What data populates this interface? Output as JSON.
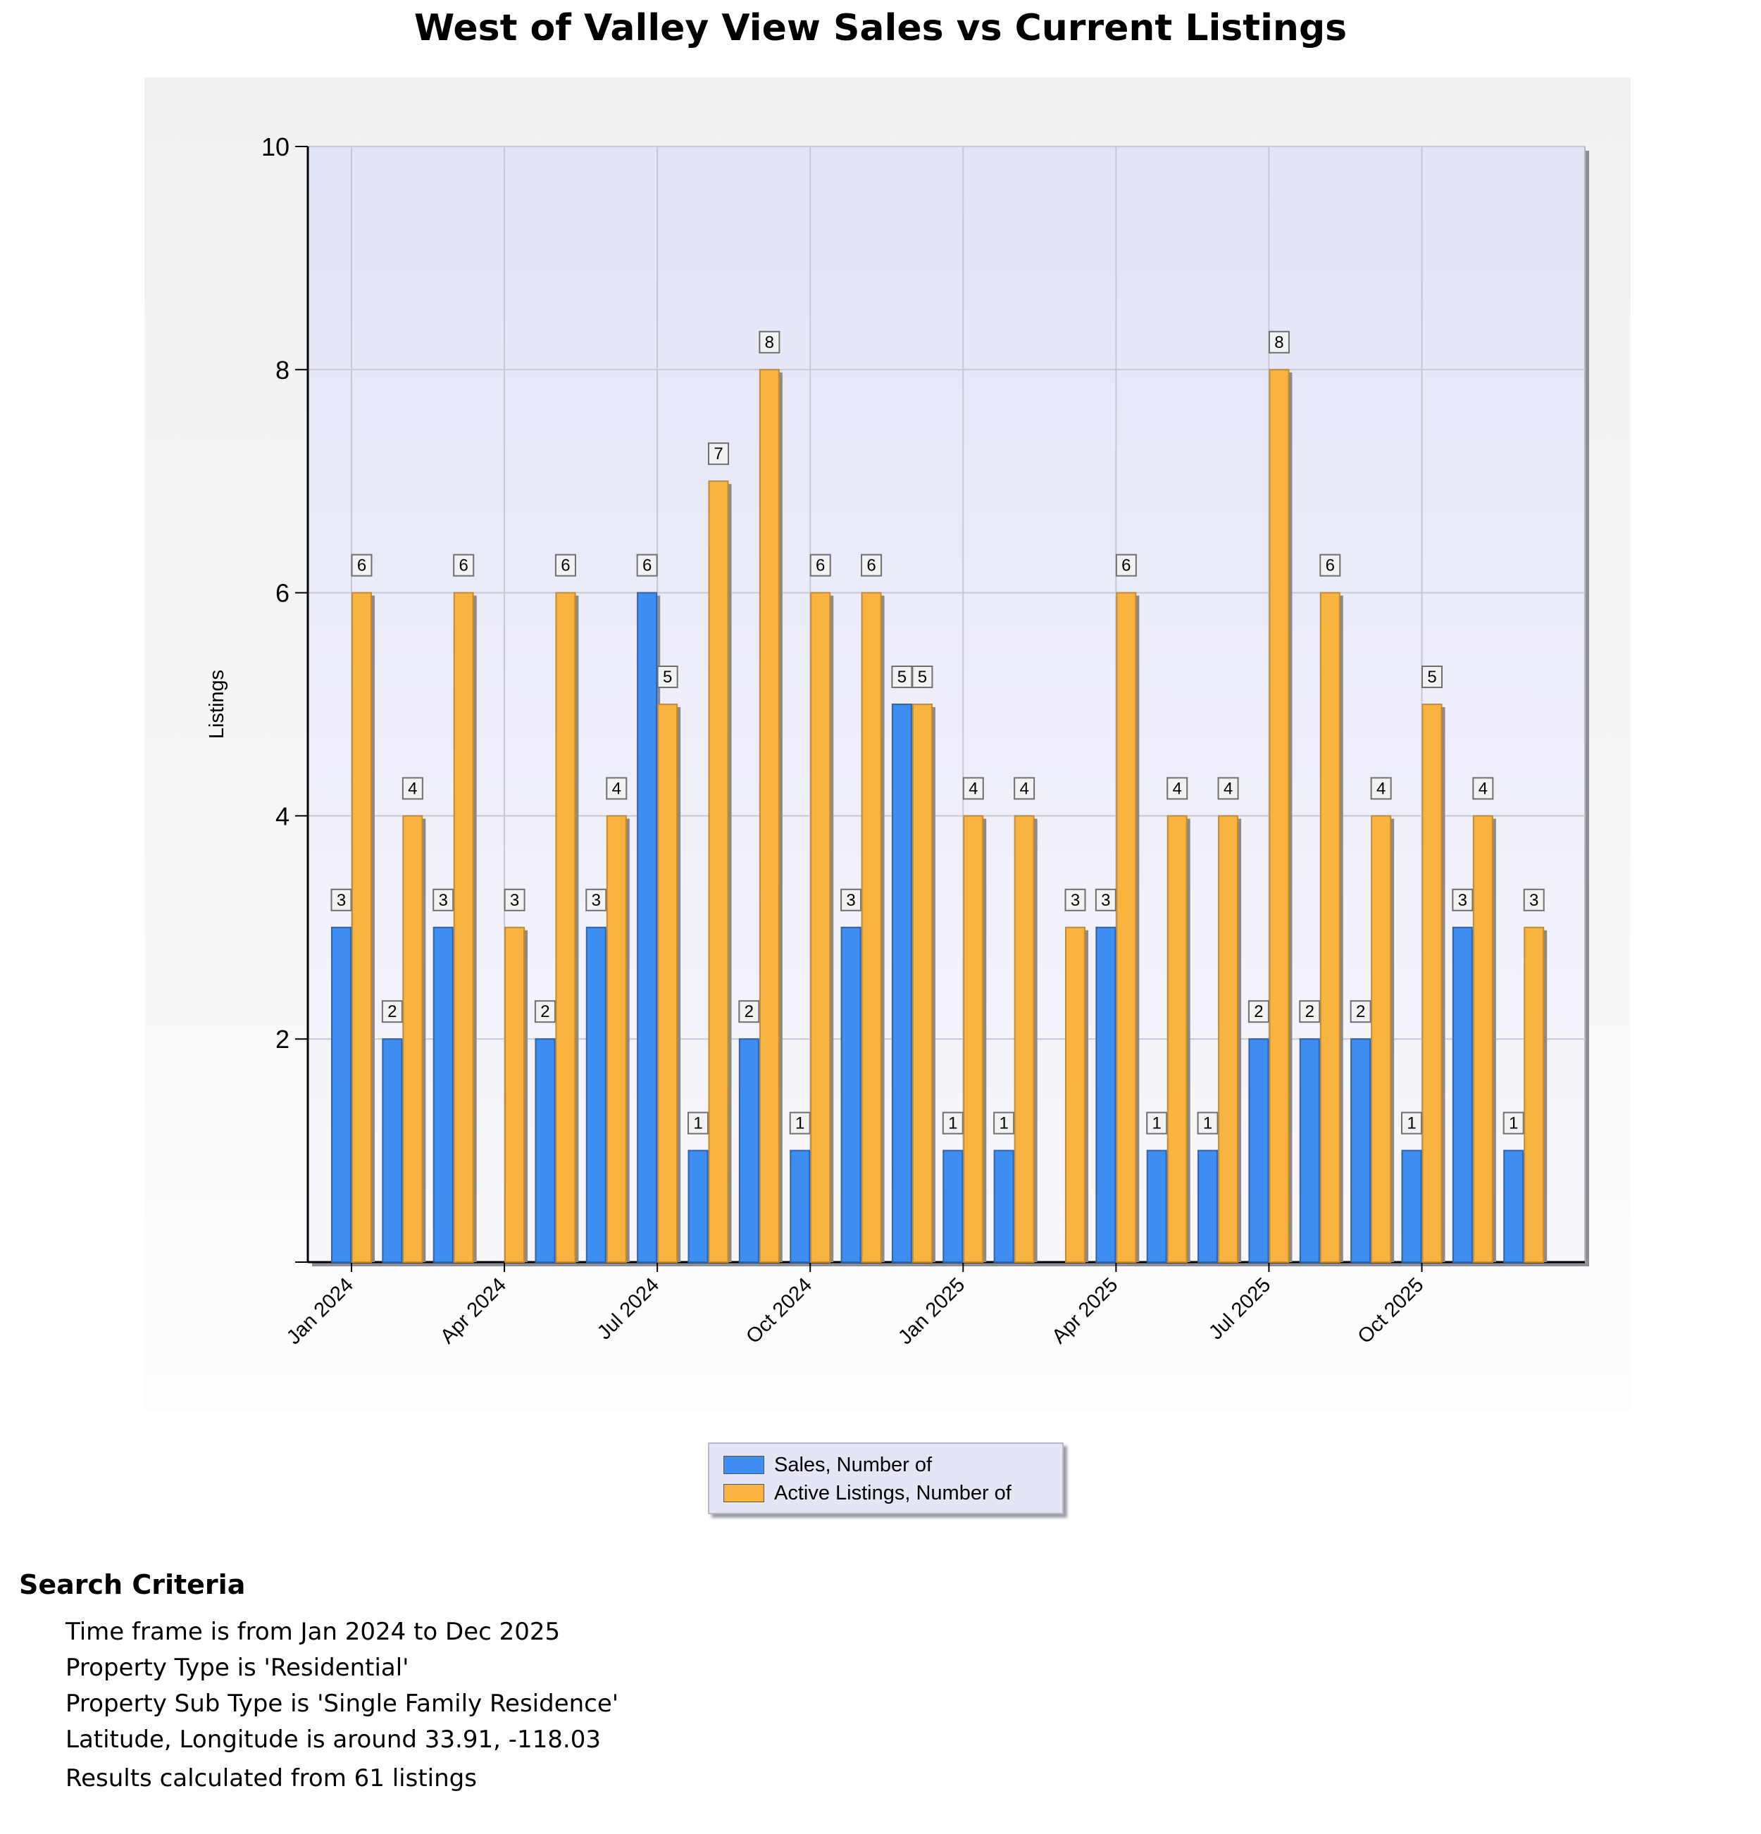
{
  "colors": {
    "sales": "#3d8ef0",
    "sales_dark": "#2a64b8",
    "active": "#f8b340",
    "active_dark": "#c98a28",
    "plot_bg_top": "#e2e4f7",
    "plot_bg_bottom": "#f8f8fc",
    "grid": "#c8c8d4"
  },
  "chart_data": {
    "type": "bar",
    "title": "West of Valley View Sales vs Current Listings",
    "ylabel": "Listings",
    "xlabel": "",
    "ylim": [
      0,
      10
    ],
    "yticks": [
      2,
      4,
      6,
      8,
      10
    ],
    "grid": true,
    "legend_position": "bottom",
    "x": [
      "2024-01",
      "2024-02",
      "2024-03",
      "2024-04",
      "2024-05",
      "2024-06",
      "2024-07",
      "2024-08",
      "2024-09",
      "2024-10",
      "2024-11",
      "2024-12",
      "2025-01",
      "2025-02",
      "2025-03",
      "2025-04",
      "2025-05",
      "2025-06",
      "2025-07",
      "2025-08",
      "2025-09",
      "2025-10",
      "2025-11",
      "2025-12"
    ],
    "xtick_labels": [
      {
        "x": "2024-01",
        "label": "Jan 2024"
      },
      {
        "x": "2024-04",
        "label": "Apr 2024"
      },
      {
        "x": "2024-07",
        "label": "Jul 2024"
      },
      {
        "x": "2024-10",
        "label": "Oct 2024"
      },
      {
        "x": "2025-01",
        "label": "Jan 2025"
      },
      {
        "x": "2025-04",
        "label": "Apr 2025"
      },
      {
        "x": "2025-07",
        "label": "Jul 2025"
      },
      {
        "x": "2025-10",
        "label": "Oct 2025"
      }
    ],
    "series": [
      {
        "name": "Sales, Number of",
        "color": "#3d8ef0",
        "values": [
          3,
          2,
          3,
          0,
          2,
          3,
          6,
          1,
          2,
          1,
          3,
          5,
          1,
          1,
          0,
          3,
          1,
          1,
          2,
          2,
          2,
          1,
          3,
          1
        ]
      },
      {
        "name": "Active Listings, Number of",
        "color": "#f8b340",
        "values": [
          6,
          4,
          6,
          3,
          6,
          4,
          5,
          7,
          8,
          6,
          6,
          5,
          4,
          4,
          3,
          6,
          4,
          4,
          8,
          6,
          4,
          5,
          4,
          3
        ]
      }
    ]
  },
  "search_criteria": {
    "heading": "Search Criteria",
    "lines": [
      "Time frame is from Jan 2024 to Dec 2025",
      "Property Type is 'Residential'",
      "Property Sub Type is 'Single Family Residence'",
      "Latitude, Longitude is around 33.91, -118.03"
    ],
    "footer": "Results calculated from 61 listings"
  }
}
